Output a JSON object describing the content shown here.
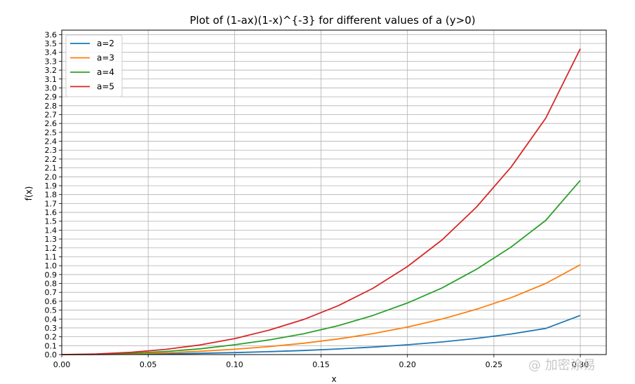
{
  "chart_data": {
    "type": "line",
    "title": "Plot of (1-ax)(1-x)^{-3} for different values of a (y>0)",
    "xlabel": "x",
    "ylabel": "f(x)",
    "xlim": [
      0.0,
      0.315
    ],
    "ylim": [
      0.0,
      3.65
    ],
    "grid": true,
    "legend_position": "top-left",
    "x_ticks": [
      "0.00",
      "0.05",
      "0.10",
      "0.15",
      "0.20",
      "0.25",
      "0.30"
    ],
    "y_ticks": [
      "0.0",
      "0.1",
      "0.2",
      "0.3",
      "0.4",
      "0.5",
      "0.6",
      "0.7",
      "0.8",
      "0.9",
      "1.0",
      "1.1",
      "1.2",
      "1.3",
      "1.4",
      "1.5",
      "1.6",
      "1.7",
      "1.8",
      "1.9",
      "2.0",
      "2.1",
      "2.2",
      "2.3",
      "2.4",
      "2.5",
      "2.6",
      "2.7",
      "2.8",
      "2.9",
      "3.0",
      "3.1",
      "3.2",
      "3.3",
      "3.4",
      "3.5",
      "3.6"
    ],
    "x": [
      0.0,
      0.02,
      0.04,
      0.06,
      0.08,
      0.1,
      0.12,
      0.14,
      0.16,
      0.18,
      0.2,
      0.22,
      0.24,
      0.26,
      0.28,
      0.3
    ],
    "series": [
      {
        "name": "a=2",
        "color": "#1f77b4",
        "values": [
          0.0,
          0.001,
          0.004,
          0.008,
          0.014,
          0.022,
          0.033,
          0.046,
          0.063,
          0.084,
          0.11,
          0.142,
          0.182,
          0.232,
          0.294,
          0.44
        ]
      },
      {
        "name": "a=3",
        "color": "#ff7f0e",
        "values": [
          0.0,
          0.002,
          0.009,
          0.02,
          0.037,
          0.06,
          0.09,
          0.128,
          0.176,
          0.236,
          0.31,
          0.4,
          0.51,
          0.64,
          0.8,
          1.01
        ]
      },
      {
        "name": "a=4",
        "color": "#2ca02c",
        "values": [
          0.0,
          0.004,
          0.015,
          0.035,
          0.065,
          0.11,
          0.165,
          0.235,
          0.325,
          0.44,
          0.58,
          0.75,
          0.96,
          1.21,
          1.51,
          1.96
        ]
      },
      {
        "name": "a=5",
        "color": "#d62728",
        "values": [
          0.0,
          0.006,
          0.025,
          0.058,
          0.108,
          0.18,
          0.275,
          0.395,
          0.55,
          0.745,
          0.99,
          1.29,
          1.66,
          2.11,
          2.66,
          3.44
        ]
      }
    ]
  },
  "watermark": "@ 加密涂易"
}
